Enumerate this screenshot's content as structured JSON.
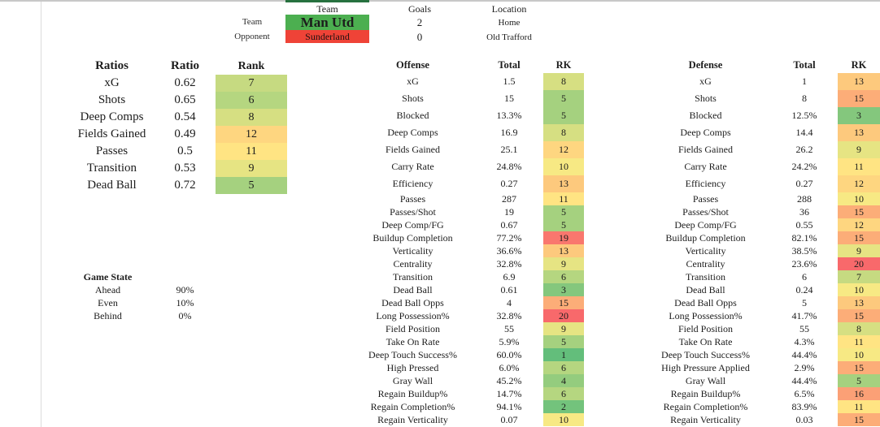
{
  "match_header": {
    "team_col": "Team",
    "goals_col": "Goals",
    "location_col": "Location",
    "rows": [
      {
        "label": "Team",
        "name": "Man Utd",
        "goals": "2",
        "location": "Home",
        "color": "#4CAF50"
      },
      {
        "label": "Opponent",
        "name": "Sunderland",
        "goals": "0",
        "location": "Old Trafford",
        "color": "#EF4337"
      }
    ]
  },
  "ratios": {
    "title": "Ratios",
    "ratio_col": "Ratio",
    "rank_col": "Rank",
    "rows": [
      {
        "label": "xG",
        "ratio": "0.62",
        "rank": 7
      },
      {
        "label": "Shots",
        "ratio": "0.65",
        "rank": 6
      },
      {
        "label": "Deep Comps",
        "ratio": "0.54",
        "rank": 8
      },
      {
        "label": "Fields Gained",
        "ratio": "0.49",
        "rank": 12
      },
      {
        "label": "Passes",
        "ratio": "0.5",
        "rank": 11
      },
      {
        "label": "Transition",
        "ratio": "0.53",
        "rank": 9
      },
      {
        "label": "Dead Ball",
        "ratio": "0.72",
        "rank": 5
      }
    ]
  },
  "game_state": {
    "title": "Game State",
    "rows": [
      {
        "label": "Ahead",
        "value": "90%"
      },
      {
        "label": "Even",
        "value": "10%"
      },
      {
        "label": "Behind",
        "value": "0%"
      }
    ]
  },
  "offense": {
    "title": "Offense",
    "total_col": "Total",
    "rk_col": "RK",
    "rows": [
      {
        "label": "xG",
        "total": "1.5",
        "rank": 8
      },
      {
        "label": "Shots",
        "total": "15",
        "rank": 5
      },
      {
        "label": "Blocked",
        "total": "13.3%",
        "rank": 5
      },
      {
        "label": "Deep Comps",
        "total": "16.9",
        "rank": 8
      },
      {
        "label": "Fields Gained",
        "total": "25.1",
        "rank": 12
      },
      {
        "label": "Carry Rate",
        "total": "24.8%",
        "rank": 10
      },
      {
        "label": "Efficiency",
        "total": "0.27",
        "rank": 13
      },
      {
        "label": "Passes",
        "total": "287",
        "rank": 11
      },
      {
        "label": "Passes/Shot",
        "total": "19",
        "rank": 5
      },
      {
        "label": "Deep Comp/FG",
        "total": "0.67",
        "rank": 5
      },
      {
        "label": "Buildup Completion",
        "total": "77.2%",
        "rank": 19
      },
      {
        "label": "Verticality",
        "total": "36.6%",
        "rank": 13
      },
      {
        "label": "Centrality",
        "total": "32.8%",
        "rank": 9
      },
      {
        "label": "Transition",
        "total": "6.9",
        "rank": 6
      },
      {
        "label": "Dead Ball",
        "total": "0.61",
        "rank": 3
      },
      {
        "label": "Dead Ball Opps",
        "total": "4",
        "rank": 15
      },
      {
        "label": "Long Possession%",
        "total": "32.8%",
        "rank": 20
      },
      {
        "label": "Field Position",
        "total": "55",
        "rank": 9
      },
      {
        "label": "Take On Rate",
        "total": "5.9%",
        "rank": 5
      },
      {
        "label": "Deep Touch Success%",
        "total": "60.0%",
        "rank": 1
      },
      {
        "label": "High Pressed",
        "total": "6.0%",
        "rank": 6
      },
      {
        "label": "Gray Wall",
        "total": "45.2%",
        "rank": 4
      },
      {
        "label": "Regain Buildup%",
        "total": "14.7%",
        "rank": 6
      },
      {
        "label": "Regain Completion%",
        "total": "94.1%",
        "rank": 2
      },
      {
        "label": "Regain Verticality",
        "total": "0.07",
        "rank": 10
      }
    ]
  },
  "defense": {
    "title": "Defense",
    "total_col": "Total",
    "rk_col": "RK",
    "rows": [
      {
        "label": "xG",
        "total": "1",
        "rank": 13
      },
      {
        "label": "Shots",
        "total": "8",
        "rank": 15
      },
      {
        "label": "Blocked",
        "total": "12.5%",
        "rank": 3
      },
      {
        "label": "Deep Comps",
        "total": "14.4",
        "rank": 13
      },
      {
        "label": "Fields Gained",
        "total": "26.2",
        "rank": 9
      },
      {
        "label": "Carry Rate",
        "total": "24.2%",
        "rank": 11
      },
      {
        "label": "Efficiency",
        "total": "0.27",
        "rank": 12
      },
      {
        "label": "Passes",
        "total": "288",
        "rank": 10
      },
      {
        "label": "Passes/Shot",
        "total": "36",
        "rank": 15
      },
      {
        "label": "Deep Comp/FG",
        "total": "0.55",
        "rank": 12
      },
      {
        "label": "Buildup Completion",
        "total": "82.1%",
        "rank": 15
      },
      {
        "label": "Verticality",
        "total": "38.5%",
        "rank": 9
      },
      {
        "label": "Centrality",
        "total": "23.6%",
        "rank": 20
      },
      {
        "label": "Transition",
        "total": "6",
        "rank": 7
      },
      {
        "label": "Dead Ball",
        "total": "0.24",
        "rank": 10
      },
      {
        "label": "Dead Ball Opps",
        "total": "5",
        "rank": 13
      },
      {
        "label": "Long Possession%",
        "total": "41.7%",
        "rank": 15
      },
      {
        "label": "Field Position",
        "total": "55",
        "rank": 8
      },
      {
        "label": "Take On Rate",
        "total": "4.3%",
        "rank": 11
      },
      {
        "label": "Deep Touch Success%",
        "total": "44.4%",
        "rank": 10
      },
      {
        "label": "High Pressure Applied",
        "total": "2.9%",
        "rank": 15
      },
      {
        "label": "Gray Wall",
        "total": "44.4%",
        "rank": 5
      },
      {
        "label": "Regain Buildup%",
        "total": "6.5%",
        "rank": 16
      },
      {
        "label": "Regain Completion%",
        "total": "83.9%",
        "rank": 11
      },
      {
        "label": "Regain Verticality",
        "total": "0.03",
        "rank": 15
      }
    ]
  },
  "rank_colors": {
    "1": "#63BE7B",
    "2": "#73C37C",
    "3": "#84C77D",
    "4": "#94CC7E",
    "5": "#A5D17F",
    "6": "#B5D680",
    "7": "#C6DA81",
    "8": "#D6DF82",
    "9": "#E6E483",
    "10": "#F7E984",
    "11": "#FFE483",
    "12": "#FED680",
    "13": "#FDC97D",
    "14": "#FCBB7B",
    "15": "#FCAD78",
    "16": "#FBA076",
    "17": "#FA9273",
    "18": "#F98470",
    "19": "#F9776E",
    "20": "#F8696B"
  }
}
